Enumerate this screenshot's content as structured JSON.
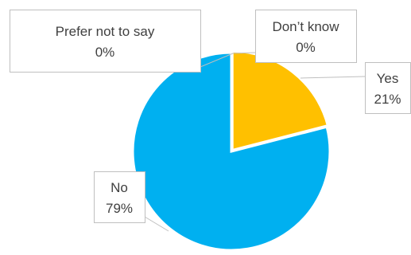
{
  "chart_data": {
    "type": "pie",
    "title": "",
    "categories": [
      "Yes",
      "No",
      "Prefer not to say",
      "Don’t know"
    ],
    "values": [
      21,
      79,
      0,
      0
    ],
    "value_labels": [
      "21%",
      "79%",
      "0%",
      "0%"
    ],
    "units": "%",
    "legend": "none",
    "colors": {
      "Yes": "#FFC000",
      "No": "#00B0F0",
      "Prefer not to say": "#FFFFFF",
      "Don’t know": "#FFFFFF"
    }
  }
}
